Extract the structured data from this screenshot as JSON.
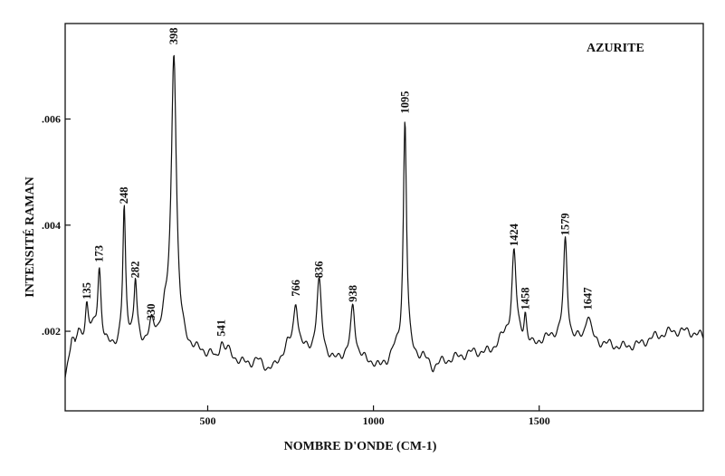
{
  "chart_data": {
    "type": "line",
    "title": "AZURITE",
    "xlabel": "NOMBRE D'ONDE (CM-1)",
    "ylabel": "INTENSITÉ RAMAN",
    "xlim": [
      70,
      1995
    ],
    "ylim": [
      0.0005,
      0.0078
    ],
    "x_ticks": [
      {
        "value": 500,
        "label": "500"
      },
      {
        "value": 1000,
        "label": "1000"
      },
      {
        "value": 1500,
        "label": "1500"
      }
    ],
    "y_ticks": [
      {
        "value": 0.002,
        "label": ".002"
      },
      {
        "value": 0.004,
        "label": ".004"
      },
      {
        "value": 0.006,
        "label": ".006"
      }
    ],
    "grid": false,
    "baseline": [
      [
        70,
        0.00115
      ],
      [
        80,
        0.0015
      ],
      [
        90,
        0.0019
      ],
      [
        100,
        0.0017
      ],
      [
        110,
        0.002
      ],
      [
        120,
        0.0019
      ],
      [
        160,
        0.002
      ],
      [
        190,
        0.0017
      ],
      [
        210,
        0.00175
      ],
      [
        230,
        0.0017
      ],
      [
        265,
        0.0019
      ],
      [
        300,
        0.00175
      ],
      [
        350,
        0.0019
      ],
      [
        370,
        0.0022
      ],
      [
        430,
        0.0017
      ],
      [
        470,
        0.0016
      ],
      [
        510,
        0.00155
      ],
      [
        525,
        0.0014
      ],
      [
        560,
        0.0016
      ],
      [
        580,
        0.0015
      ],
      [
        600,
        0.0014
      ],
      [
        630,
        0.0014
      ],
      [
        650,
        0.00145
      ],
      [
        680,
        0.0013
      ],
      [
        700,
        0.0013
      ],
      [
        720,
        0.0015
      ],
      [
        740,
        0.0017
      ],
      [
        790,
        0.0016
      ],
      [
        810,
        0.0016
      ],
      [
        860,
        0.0015
      ],
      [
        880,
        0.0014
      ],
      [
        900,
        0.0015
      ],
      [
        960,
        0.0015
      ],
      [
        980,
        0.0014
      ],
      [
        1000,
        0.0014
      ],
      [
        1020,
        0.0013
      ],
      [
        1040,
        0.0014
      ],
      [
        1060,
        0.0016
      ],
      [
        1120,
        0.0015
      ],
      [
        1150,
        0.0015
      ],
      [
        1180,
        0.0013
      ],
      [
        1200,
        0.0014
      ],
      [
        1250,
        0.0015
      ],
      [
        1300,
        0.0016
      ],
      [
        1350,
        0.0016
      ],
      [
        1380,
        0.0018
      ],
      [
        1400,
        0.0019
      ],
      [
        1480,
        0.0017
      ],
      [
        1500,
        0.0018
      ],
      [
        1550,
        0.0019
      ],
      [
        1600,
        0.0018
      ],
      [
        1700,
        0.00175
      ],
      [
        1750,
        0.0017
      ],
      [
        1800,
        0.00175
      ],
      [
        1850,
        0.0019
      ],
      [
        1900,
        0.002
      ],
      [
        1950,
        0.002
      ],
      [
        1995,
        0.0019
      ]
    ],
    "peaks": [
      {
        "x": 135,
        "y": 0.0025,
        "label": "135"
      },
      {
        "x": 173,
        "y": 0.0032,
        "label": "173"
      },
      {
        "x": 248,
        "y": 0.0043,
        "label": "248"
      },
      {
        "x": 282,
        "y": 0.0029,
        "label": "282"
      },
      {
        "x": 330,
        "y": 0.0021,
        "label": "330"
      },
      {
        "x": 398,
        "y": 0.0073,
        "label": "398"
      },
      {
        "x": 541,
        "y": 0.0018,
        "label": "541"
      },
      {
        "x": 766,
        "y": 0.00255,
        "label": "766"
      },
      {
        "x": 836,
        "y": 0.0029,
        "label": "836"
      },
      {
        "x": 938,
        "y": 0.00245,
        "label": "938"
      },
      {
        "x": 1095,
        "y": 0.006,
        "label": "1095"
      },
      {
        "x": 1424,
        "y": 0.0035,
        "label": "1424"
      },
      {
        "x": 1458,
        "y": 0.0023,
        "label": "1458"
      },
      {
        "x": 1579,
        "y": 0.0037,
        "label": "1579"
      },
      {
        "x": 1647,
        "y": 0.0023,
        "label": "1647"
      }
    ]
  }
}
